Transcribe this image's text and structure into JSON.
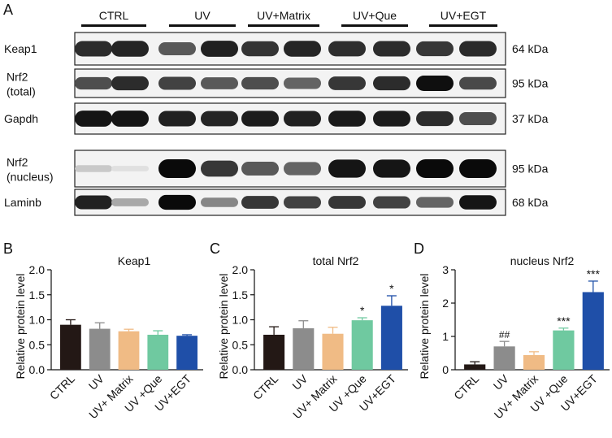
{
  "figure": {
    "panel_letters": [
      "A",
      "B",
      "C",
      "D"
    ],
    "blot": {
      "groups": [
        "CTRL",
        "UV",
        "UV+Matrix",
        "UV+Que",
        "UV+EGT"
      ],
      "rows": [
        {
          "label": "Keap1",
          "size": "64 kDa",
          "intensities": [
            0.85,
            0.88,
            0.65,
            0.9,
            0.82,
            0.88,
            0.84,
            0.85,
            0.8,
            0.86
          ]
        },
        {
          "label": "Nrf2\n(total)",
          "size": "95 kDa",
          "intensities": [
            0.7,
            0.85,
            0.75,
            0.65,
            0.7,
            0.6,
            0.8,
            0.85,
            0.98,
            0.72
          ]
        },
        {
          "label": "Gapdh",
          "size": "37 kDa",
          "intensities": [
            0.95,
            0.95,
            0.9,
            0.88,
            0.92,
            0.9,
            0.93,
            0.92,
            0.85,
            0.7
          ]
        },
        {
          "label": "Nrf2\n(nucleus)",
          "size": "95 kDa",
          "intensities": [
            0.15,
            0.05,
            1.0,
            0.8,
            0.65,
            0.6,
            0.95,
            0.95,
            1.0,
            1.0
          ]
        },
        {
          "label": "Laminb",
          "size": "68 kDa",
          "intensities": [
            0.9,
            0.3,
            1.0,
            0.45,
            0.8,
            0.75,
            0.8,
            0.75,
            0.6,
            0.95
          ]
        }
      ]
    }
  },
  "colors": [
    "#231815",
    "#8c8c8c",
    "#f0bb85",
    "#6fc9a0",
    "#1f4fa8"
  ],
  "chart_data": [
    {
      "panel": "B",
      "type": "bar",
      "title": "Keap1",
      "ylabel": "Relative protein level",
      "categories": [
        "CTRL",
        "UV",
        "UV+ Matrix",
        "UV +Que",
        "UV+EGT"
      ],
      "values": [
        0.9,
        0.82,
        0.77,
        0.7,
        0.68
      ],
      "errors": [
        0.1,
        0.12,
        0.04,
        0.08,
        0.02
      ],
      "annotations": [
        "",
        "",
        "",
        "",
        ""
      ],
      "ylim": [
        0,
        2.0
      ],
      "yticks": [
        "0.0",
        "0.5",
        "1.0",
        "1.5",
        "2.0"
      ],
      "grid": false
    },
    {
      "panel": "C",
      "type": "bar",
      "title": "total Nrf2",
      "ylabel": "Relative protein level",
      "categories": [
        "CTRL",
        "UV",
        "UV+ Matrix",
        "UV +Que",
        "UV+EGT"
      ],
      "values": [
        0.7,
        0.83,
        0.72,
        0.99,
        1.28
      ],
      "errors": [
        0.16,
        0.15,
        0.13,
        0.05,
        0.2
      ],
      "annotations": [
        "",
        "",
        "",
        "*",
        "*"
      ],
      "ylim": [
        0,
        2.0
      ],
      "yticks": [
        "0.0",
        "0.5",
        "1.0",
        "1.5",
        "2.0"
      ],
      "grid": false
    },
    {
      "panel": "D",
      "type": "bar",
      "title": "nucleus Nrf2",
      "ylabel": "Relative protein level",
      "categories": [
        "CTRL",
        "UV",
        "UV+ Matrix",
        "UV +Que",
        "UV+EGT"
      ],
      "values": [
        0.16,
        0.7,
        0.44,
        1.18,
        2.33
      ],
      "errors": [
        0.08,
        0.15,
        0.1,
        0.07,
        0.33
      ],
      "annotations": [
        "",
        "##",
        "",
        "***",
        "***"
      ],
      "ylim": [
        0,
        3
      ],
      "yticks": [
        "0",
        "1",
        "2",
        "3"
      ],
      "grid": false
    }
  ]
}
